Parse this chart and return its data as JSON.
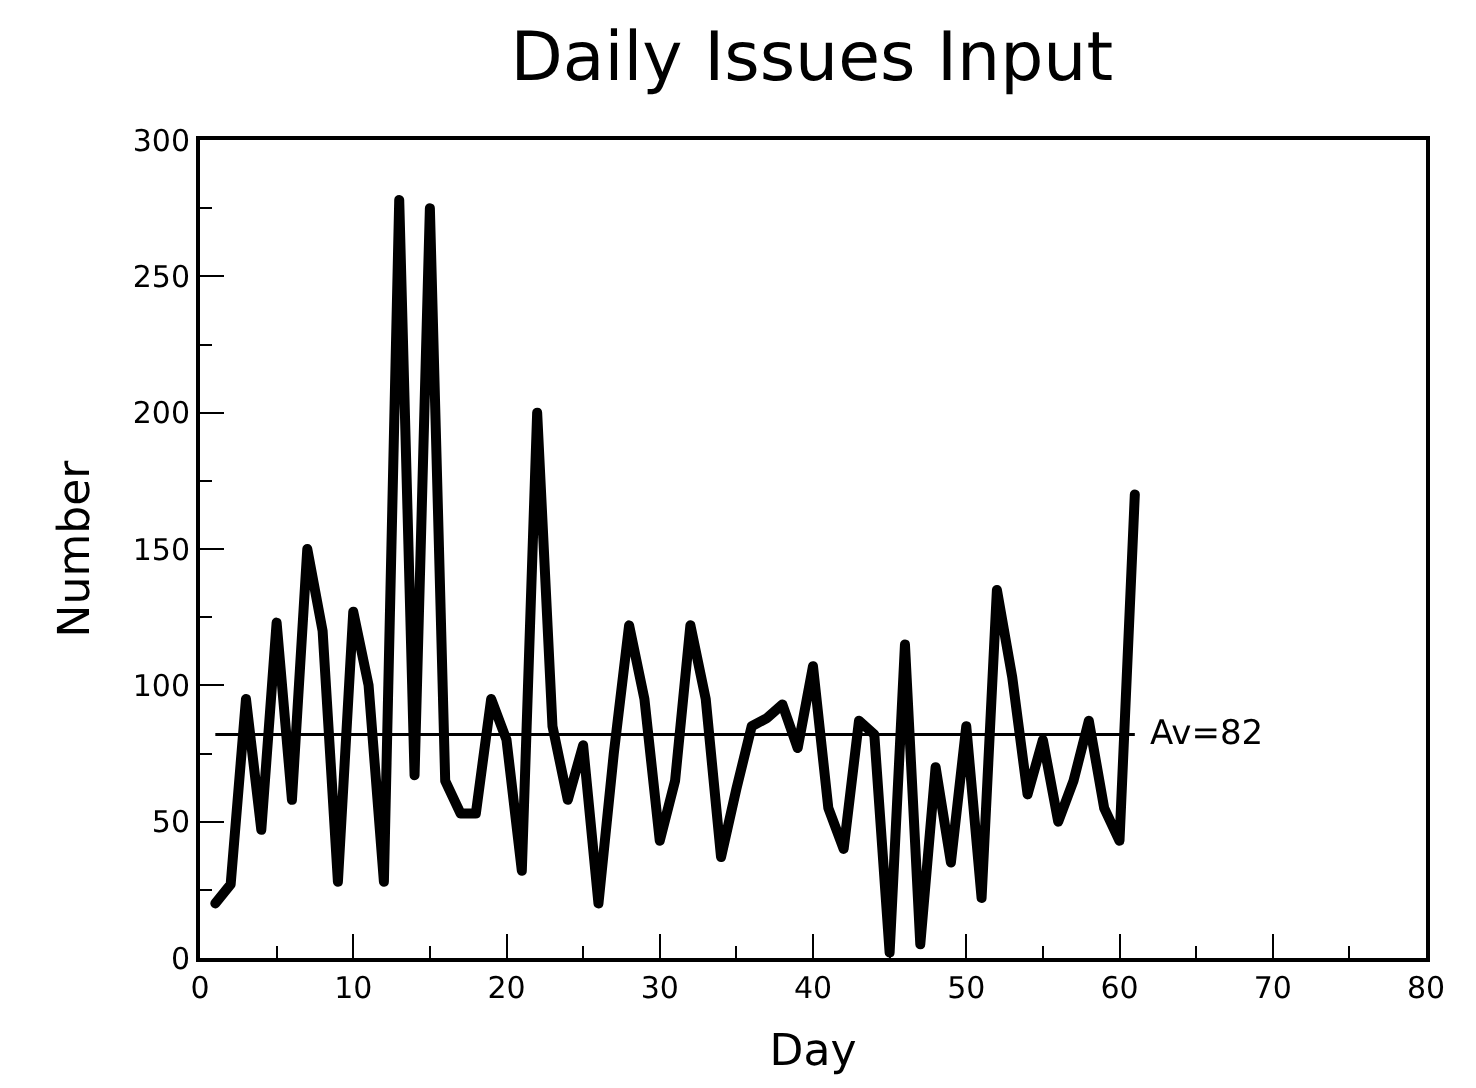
{
  "chart_data": {
    "type": "line",
    "title": "Daily Issues Input",
    "xlabel": "Day",
    "ylabel": "Number",
    "x": [
      1,
      2,
      3,
      4,
      5,
      6,
      7,
      8,
      9,
      10,
      11,
      12,
      13,
      14,
      15,
      16,
      17,
      18,
      19,
      20,
      21,
      22,
      23,
      24,
      25,
      26,
      27,
      28,
      29,
      30,
      31,
      32,
      33,
      34,
      35,
      36,
      37,
      38,
      39,
      40,
      41,
      42,
      43,
      44,
      45,
      46,
      47,
      48,
      49,
      50,
      51,
      52,
      53,
      54,
      55,
      56,
      57,
      58,
      59,
      60,
      61
    ],
    "series": [
      {
        "color": "#000000",
        "values": [
          20,
          27,
          95,
          47,
          123,
          58,
          150,
          120,
          28,
          127,
          100,
          28,
          278,
          67,
          275,
          65,
          53,
          53,
          95,
          80,
          32,
          200,
          85,
          58,
          78,
          20,
          75,
          122,
          95,
          43,
          65,
          122,
          95,
          37,
          62,
          85,
          88,
          93,
          77,
          107,
          55,
          40,
          87,
          82,
          2,
          115,
          5,
          70,
          35,
          85,
          22,
          135,
          103,
          60,
          80,
          50,
          65,
          87,
          55,
          43,
          170
        ]
      }
    ],
    "ref_lines": [
      {
        "axis": "y",
        "value": 82,
        "label": "Av=82",
        "color": "#000000",
        "line_style": "solid"
      }
    ],
    "xlim": [
      0,
      80
    ],
    "xticks": [
      0,
      10,
      20,
      30,
      40,
      50,
      60,
      70,
      80
    ],
    "ylim": [
      0,
      300
    ],
    "yticks": [
      0,
      50,
      100,
      150,
      200,
      250,
      300
    ],
    "line_style": "solid"
  }
}
